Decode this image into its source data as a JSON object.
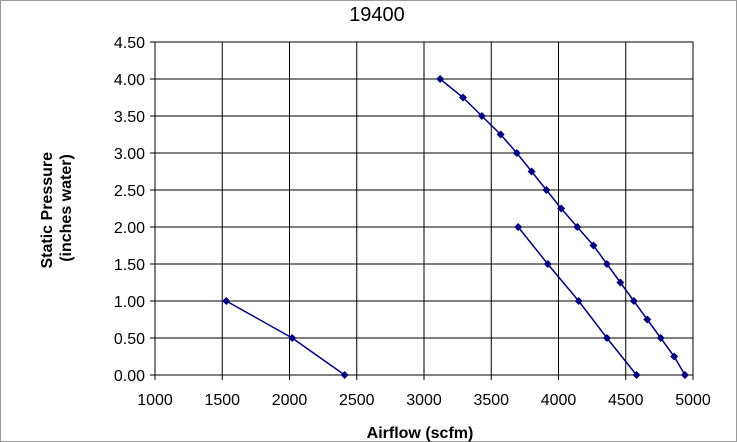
{
  "chart_data": {
    "type": "scatter",
    "title": "19400",
    "xlabel": "Airflow (scfm)",
    "ylabel_lines": [
      "Static Pressure",
      "(inches water)"
    ],
    "xlim": [
      1000,
      5000
    ],
    "ylim": [
      0,
      4.5
    ],
    "x_ticks": [
      "1000",
      "1500",
      "2000",
      "2500",
      "3000",
      "3500",
      "4000",
      "4500",
      "5000"
    ],
    "y_ticks": [
      "0.00",
      "0.50",
      "1.00",
      "1.50",
      "2.00",
      "2.50",
      "3.00",
      "3.50",
      "4.00",
      "4.50"
    ],
    "grid": true,
    "legend": "none",
    "series_color": "#000080",
    "series": [
      {
        "points": [
          [
            1530,
            1.0
          ],
          [
            2020,
            0.5
          ],
          [
            2410,
            0.0
          ]
        ]
      },
      {
        "points": [
          [
            3120,
            4.0
          ],
          [
            3290,
            3.75
          ],
          [
            3430,
            3.5
          ],
          [
            3570,
            3.25
          ],
          [
            3690,
            3.0
          ],
          [
            3800,
            2.75
          ],
          [
            3910,
            2.5
          ],
          [
            4020,
            2.25
          ],
          [
            4140,
            2.0
          ],
          [
            4260,
            1.75
          ],
          [
            4360,
            1.5
          ],
          [
            4460,
            1.25
          ],
          [
            4560,
            1.0
          ],
          [
            4660,
            0.75
          ],
          [
            4760,
            0.5
          ],
          [
            4860,
            0.25
          ],
          [
            4940,
            0.0
          ]
        ]
      },
      {
        "points": [
          [
            3700,
            2.0
          ],
          [
            3920,
            1.5
          ],
          [
            4150,
            1.0
          ],
          [
            4360,
            0.5
          ],
          [
            4580,
            0.0
          ]
        ]
      }
    ]
  }
}
